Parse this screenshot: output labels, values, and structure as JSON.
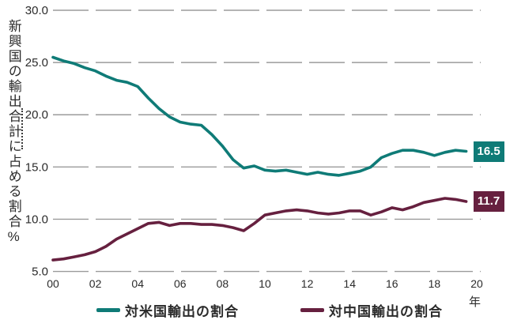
{
  "chart_data": {
    "type": "line",
    "title": "",
    "ylabel": "新興国の輸出合計に占める割合%",
    "xlabel": "年",
    "ylim": [
      5.0,
      30.0
    ],
    "x_range": [
      2000,
      2020
    ],
    "grid": "horizontal-dashed",
    "grid_color": "#9b9b9b",
    "legend_position": "bottom",
    "text_color": "#2b2b2b",
    "background_color": "#ffffff",
    "yticks": [
      {
        "label": "30.0",
        "value": 30.0
      },
      {
        "label": "25.0",
        "value": 25.0
      },
      {
        "label": "20.0",
        "value": 20.0
      },
      {
        "label": "15.0",
        "value": 15.0
      },
      {
        "label": "10.0",
        "value": 10.0
      },
      {
        "label": "5.0",
        "value": 5.0
      }
    ],
    "xticks": [
      {
        "label": "00",
        "year": 2000
      },
      {
        "label": "02",
        "year": 2002
      },
      {
        "label": "04",
        "year": 2004
      },
      {
        "label": "06",
        "year": 2006
      },
      {
        "label": "08",
        "year": 2008
      },
      {
        "label": "10",
        "year": 2010
      },
      {
        "label": "12",
        "year": 2012
      },
      {
        "label": "14",
        "year": 2014
      },
      {
        "label": "16",
        "year": 2016
      },
      {
        "label": "18",
        "year": 2018
      },
      {
        "label": "20",
        "year": 2020
      }
    ],
    "x": [
      2000,
      2000.5,
      2001,
      2001.5,
      2002,
      2002.5,
      2003,
      2003.5,
      2004,
      2004.5,
      2005,
      2005.5,
      2006,
      2006.5,
      2007,
      2007.5,
      2008,
      2008.5,
      2009,
      2009.5,
      2010,
      2010.5,
      2011,
      2011.5,
      2012,
      2012.5,
      2013,
      2013.5,
      2014,
      2014.5,
      2015,
      2015.5,
      2016,
      2016.5,
      2017,
      2017.5,
      2018,
      2018.5,
      2019,
      2019.5
    ],
    "series": [
      {
        "id": "us",
        "name": "対米国輸出の割合",
        "color": "#0f7b77",
        "end_label": "16.5",
        "end_value": 16.5,
        "values": [
          25.5,
          25.15,
          24.9,
          24.5,
          24.2,
          23.7,
          23.3,
          23.1,
          22.7,
          21.6,
          20.6,
          19.8,
          19.3,
          19.1,
          19.0,
          18.1,
          17.0,
          15.7,
          14.9,
          15.1,
          14.7,
          14.6,
          14.7,
          14.5,
          14.3,
          14.5,
          14.3,
          14.2,
          14.4,
          14.6,
          15.0,
          15.9,
          16.3,
          16.6,
          16.6,
          16.4,
          16.1,
          16.4,
          16.6,
          16.5
        ]
      },
      {
        "id": "china",
        "name": "対中国輸出の割合",
        "color": "#66203f",
        "end_label": "11.7",
        "end_value": 11.7,
        "values": [
          6.1,
          6.2,
          6.4,
          6.6,
          6.9,
          7.4,
          8.1,
          8.6,
          9.1,
          9.6,
          9.7,
          9.4,
          9.6,
          9.6,
          9.5,
          9.5,
          9.4,
          9.2,
          8.9,
          9.6,
          10.4,
          10.6,
          10.8,
          10.9,
          10.8,
          10.6,
          10.5,
          10.6,
          10.8,
          10.8,
          10.4,
          10.7,
          11.1,
          10.9,
          11.2,
          11.6,
          11.8,
          12.0,
          11.9,
          11.7
        ]
      }
    ]
  }
}
